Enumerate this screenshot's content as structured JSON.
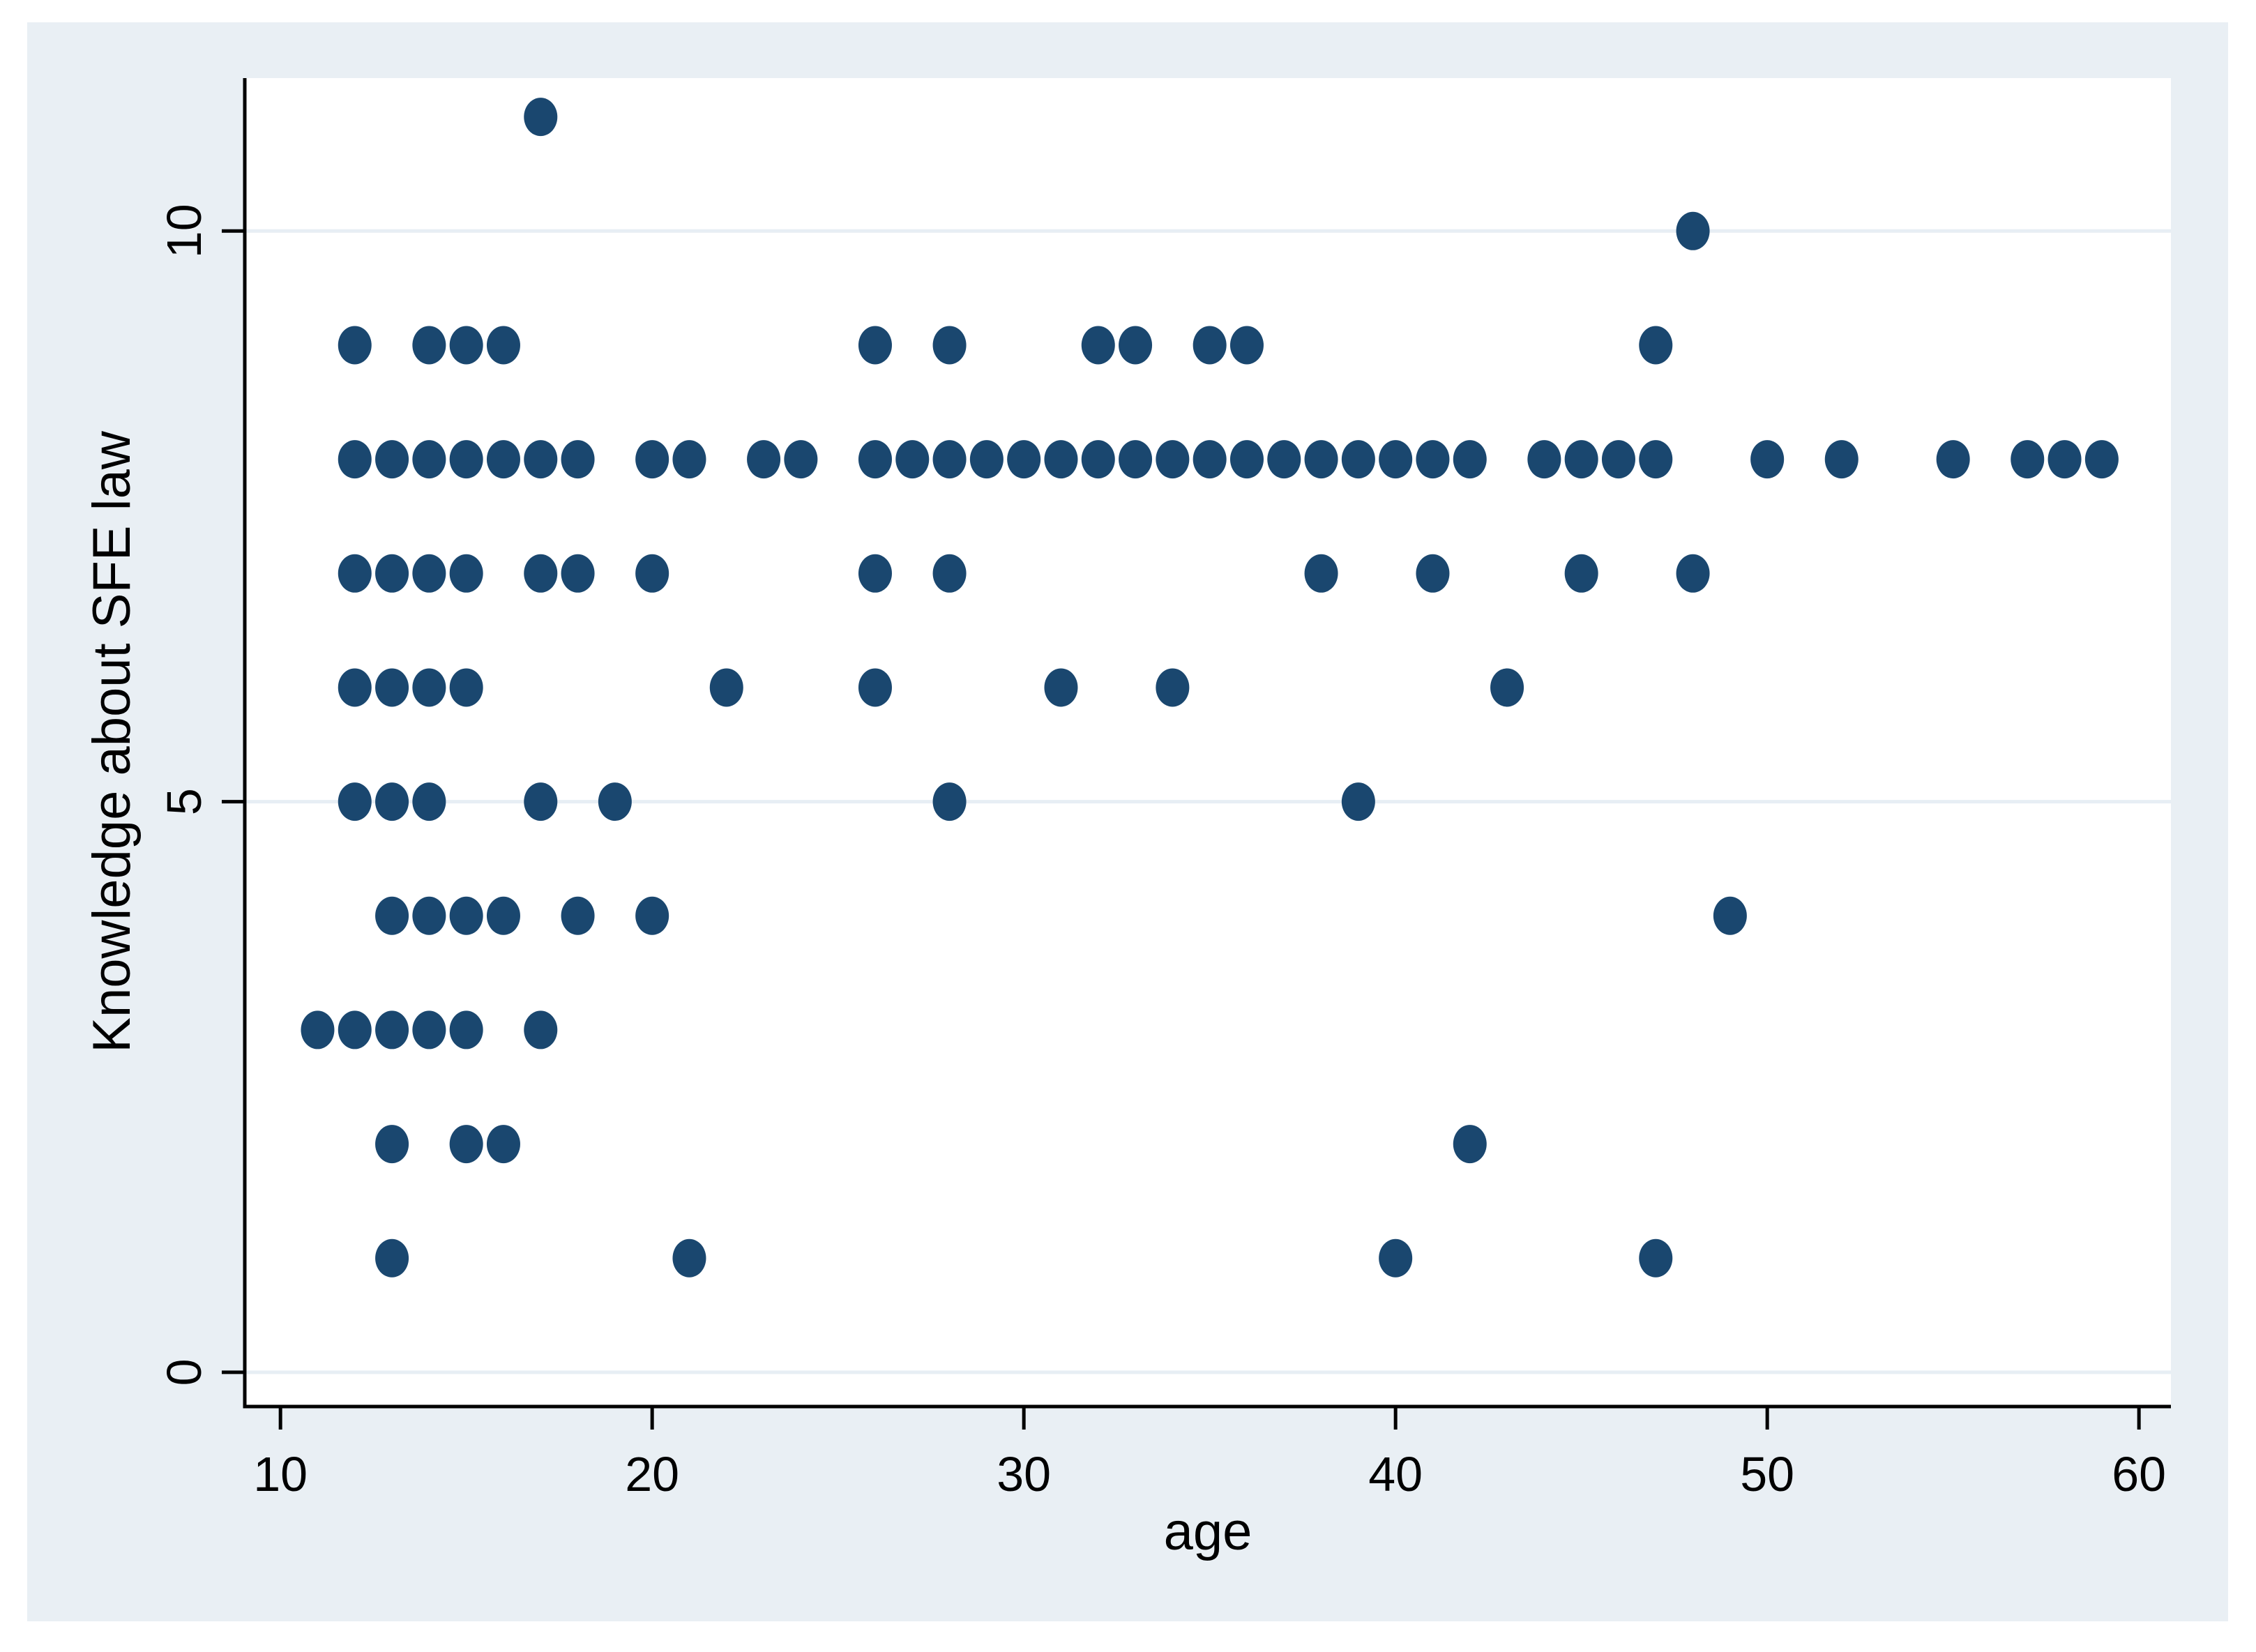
{
  "figure": {
    "page_background": "#ffffff",
    "figure_background": "#e9eff4",
    "plot_background": "#ffffff",
    "grid_color": "#e7eef4",
    "axis_color": "#000000",
    "text_color": "#000000",
    "marker_color": "#1a476f"
  },
  "chart_data": {
    "type": "scatter",
    "title": "",
    "xlabel": "age",
    "ylabel": "Knowledge about SFE law",
    "x_ticks": [
      10,
      20,
      30,
      40,
      50,
      60
    ],
    "y_ticks": [
      0,
      5,
      10
    ],
    "xlim": [
      9.04,
      60.86
    ],
    "ylim": [
      -0.3,
      11.34
    ],
    "grid": "horizontal gridlines at y ticks",
    "legend": "none",
    "marker_shape": "filled circle",
    "points": [
      [
        17,
        11
      ],
      [
        48,
        10
      ],
      [
        12,
        9
      ],
      [
        14,
        9
      ],
      [
        15,
        9
      ],
      [
        16,
        9
      ],
      [
        26,
        9
      ],
      [
        28,
        9
      ],
      [
        32,
        9
      ],
      [
        33,
        9
      ],
      [
        35,
        9
      ],
      [
        36,
        9
      ],
      [
        47,
        9
      ],
      [
        12,
        8
      ],
      [
        13,
        8
      ],
      [
        14,
        8
      ],
      [
        15,
        8
      ],
      [
        16,
        8
      ],
      [
        17,
        8
      ],
      [
        18,
        8
      ],
      [
        20,
        8
      ],
      [
        21,
        8
      ],
      [
        23,
        8
      ],
      [
        24,
        8
      ],
      [
        26,
        8
      ],
      [
        27,
        8
      ],
      [
        28,
        8
      ],
      [
        29,
        8
      ],
      [
        30,
        8
      ],
      [
        31,
        8
      ],
      [
        32,
        8
      ],
      [
        33,
        8
      ],
      [
        34,
        8
      ],
      [
        35,
        8
      ],
      [
        36,
        8
      ],
      [
        37,
        8
      ],
      [
        38,
        8
      ],
      [
        39,
        8
      ],
      [
        40,
        8
      ],
      [
        41,
        8
      ],
      [
        42,
        8
      ],
      [
        44,
        8
      ],
      [
        45,
        8
      ],
      [
        46,
        8
      ],
      [
        47,
        8
      ],
      [
        50,
        8
      ],
      [
        52,
        8
      ],
      [
        55,
        8
      ],
      [
        57,
        8
      ],
      [
        58,
        8
      ],
      [
        59,
        8
      ],
      [
        12,
        7
      ],
      [
        13,
        7
      ],
      [
        14,
        7
      ],
      [
        15,
        7
      ],
      [
        17,
        7
      ],
      [
        18,
        7
      ],
      [
        20,
        7
      ],
      [
        26,
        7
      ],
      [
        28,
        7
      ],
      [
        38,
        7
      ],
      [
        41,
        7
      ],
      [
        45,
        7
      ],
      [
        48,
        7
      ],
      [
        12,
        6
      ],
      [
        13,
        6
      ],
      [
        14,
        6
      ],
      [
        15,
        6
      ],
      [
        22,
        6
      ],
      [
        26,
        6
      ],
      [
        31,
        6
      ],
      [
        34,
        6
      ],
      [
        43,
        6
      ],
      [
        12,
        5
      ],
      [
        13,
        5
      ],
      [
        14,
        5
      ],
      [
        17,
        5
      ],
      [
        19,
        5
      ],
      [
        28,
        5
      ],
      [
        39,
        5
      ],
      [
        13,
        4
      ],
      [
        14,
        4
      ],
      [
        15,
        4
      ],
      [
        16,
        4
      ],
      [
        18,
        4
      ],
      [
        20,
        4
      ],
      [
        49,
        4
      ],
      [
        11,
        3
      ],
      [
        12,
        3
      ],
      [
        13,
        3
      ],
      [
        14,
        3
      ],
      [
        15,
        3
      ],
      [
        17,
        3
      ],
      [
        13,
        2
      ],
      [
        15,
        2
      ],
      [
        16,
        2
      ],
      [
        42,
        2
      ],
      [
        13,
        1
      ],
      [
        21,
        1
      ],
      [
        40,
        1
      ],
      [
        47,
        1
      ]
    ]
  }
}
